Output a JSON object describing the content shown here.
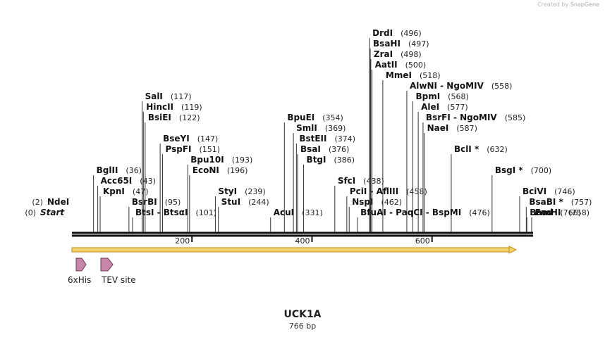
{
  "watermark": {
    "prefix": "Created by",
    "brand": "SnapGene"
  },
  "map": {
    "name": "UCK1A",
    "length_label": "766 bp",
    "length": 766
  },
  "ruler": {
    "ticks": [
      200,
      400,
      600
    ]
  },
  "features": [
    {
      "name": "6xHis",
      "label": "6xHis"
    },
    {
      "name": "TEV site",
      "label": "TEV site"
    }
  ],
  "sites": [
    {
      "name": "Start",
      "pos": "(0)",
      "bp": 0,
      "italic": true,
      "row": 0
    },
    {
      "name": "NdeI",
      "pos": "(2)",
      "bp": 2,
      "row": 1
    },
    {
      "name": "BglII",
      "pos": "(36)",
      "bp": 36,
      "row": 4
    },
    {
      "name": "Acc65I",
      "pos": "(43)",
      "bp": 43,
      "row": 3
    },
    {
      "name": "KpnI",
      "pos": "(47)",
      "bp": 47,
      "row": 2
    },
    {
      "name": "BsrBI",
      "pos": "(95)",
      "bp": 95,
      "row": 1
    },
    {
      "name": "BtsI - BtsαI",
      "pos": "(101)",
      "bp": 101,
      "row": 0
    },
    {
      "name": "SalI",
      "pos": "(117)",
      "bp": 117,
      "row": 11
    },
    {
      "name": "HincII",
      "pos": "(119)",
      "bp": 119,
      "row": 10
    },
    {
      "name": "BsiEI",
      "pos": "(122)",
      "bp": 122,
      "row": 9
    },
    {
      "name": "BseYI",
      "pos": "(147)",
      "bp": 147,
      "row": 7
    },
    {
      "name": "PspFI",
      "pos": "(151)",
      "bp": 151,
      "row": 6
    },
    {
      "name": "Bpu10I",
      "pos": "(193)",
      "bp": 193,
      "row": 5
    },
    {
      "name": "EcoNI",
      "pos": "(196)",
      "bp": 196,
      "row": 4
    },
    {
      "name": "StyI",
      "pos": "(239)",
      "bp": 239,
      "row": 2
    },
    {
      "name": "StuI",
      "pos": "(244)",
      "bp": 244,
      "row": 1
    },
    {
      "name": "AcuI",
      "pos": "(331)",
      "bp": 331,
      "row": 0
    },
    {
      "name": "BpuEI",
      "pos": "(354)",
      "bp": 354,
      "row": 9
    },
    {
      "name": "SmlI",
      "pos": "(369)",
      "bp": 369,
      "row": 8
    },
    {
      "name": "BstEII",
      "pos": "(374)",
      "bp": 374,
      "row": 7
    },
    {
      "name": "BsaI",
      "pos": "(376)",
      "bp": 376,
      "row": 6
    },
    {
      "name": "BtgI",
      "pos": "(386)",
      "bp": 386,
      "row": 5
    },
    {
      "name": "SfcI",
      "pos": "(438)",
      "bp": 438,
      "row": 3
    },
    {
      "name": "PciI - AflIII",
      "pos": "(458)",
      "bp": 458,
      "row": 2
    },
    {
      "name": "NspI",
      "pos": "(462)",
      "bp": 462,
      "row": 1
    },
    {
      "name": "BfuAI - PaqCI - BspMI",
      "pos": "(476)",
      "bp": 476,
      "row": 0
    },
    {
      "name": "DrdI",
      "pos": "(496)",
      "bp": 496,
      "row": 17
    },
    {
      "name": "BsaHI",
      "pos": "(497)",
      "bp": 497,
      "row": 16
    },
    {
      "name": "ZraI",
      "pos": "(498)",
      "bp": 498,
      "row": 15
    },
    {
      "name": "AatII",
      "pos": "(500)",
      "bp": 500,
      "row": 14
    },
    {
      "name": "MmeI",
      "pos": "(518)",
      "bp": 518,
      "row": 13
    },
    {
      "name": "AlwNI - NgoMIV",
      "pos": "(558)",
      "bp": 558,
      "row": 12
    },
    {
      "name": "BpmI",
      "pos": "(568)",
      "bp": 568,
      "row": 11
    },
    {
      "name": "AleI",
      "pos": "(577)",
      "bp": 577,
      "row": 10
    },
    {
      "name": "BsrFI - NgoMIV",
      "pos": "(585)",
      "bp": 585,
      "row": 9
    },
    {
      "name": "NaeI",
      "pos": "(587)",
      "bp": 587,
      "row": 8
    },
    {
      "name": "BclI *",
      "pos": "(632)",
      "bp": 632,
      "row": 6
    },
    {
      "name": "BsgI *",
      "pos": "(700)",
      "bp": 700,
      "row": 4
    },
    {
      "name": "BciVI",
      "pos": "(746)",
      "bp": 746,
      "row": 2
    },
    {
      "name": "BsaBI *",
      "pos": "(757)",
      "bp": 757,
      "row": 1
    },
    {
      "name": "BamHI",
      "pos": "(758)",
      "bp": 758,
      "row": 0
    },
    {
      "name": "End",
      "pos": "(766)",
      "bp": 766,
      "italic": true,
      "row": 0
    }
  ]
}
